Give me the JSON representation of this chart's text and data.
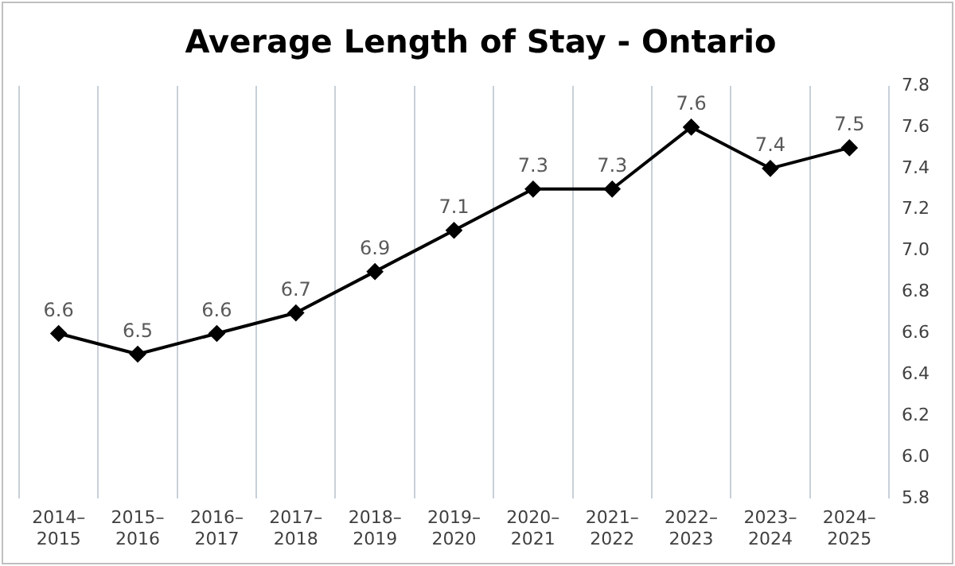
{
  "chart_data": {
    "type": "line",
    "title": "Average Length of Stay - Ontario",
    "categories": [
      "2014–2015",
      "2015–2016",
      "2016–2017",
      "2017–2018",
      "2018–2019",
      "2019–2020",
      "2020–2021",
      "2021–2022",
      "2022–2023",
      "2023–2024",
      "2024–2025"
    ],
    "series": [
      {
        "color": "#000000",
        "values": [
          6.6,
          6.5,
          6.6,
          6.7,
          6.9,
          7.1,
          7.3,
          7.3,
          7.6,
          7.4,
          7.5
        ]
      }
    ],
    "ylim": [
      5.8,
      7.8
    ],
    "yticks": [
      5.8,
      {
        "value": 6,
        "label": "6.0"
      },
      6.2,
      6.4,
      6.6,
      6.8,
      {
        "value": 7,
        "label": "7.0"
      },
      7.2,
      7.4,
      7.6,
      7.8
    ],
    "grid": "x",
    "legend": false,
    "marker": "diamond",
    "line_style": "solid",
    "data_labels": true
  }
}
